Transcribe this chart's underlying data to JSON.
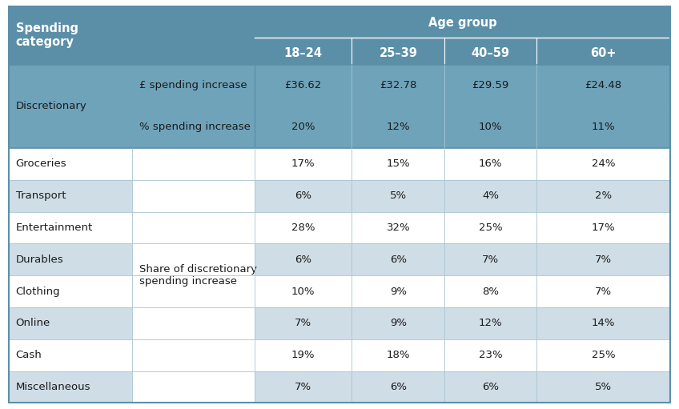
{
  "col_header_bg": "#5b8fa8",
  "disc_bg": "#6fa3ba",
  "shaded_row_bg": "#cfdde6",
  "white_row_bg": "#ffffff",
  "border_color": "#5b8fa8",
  "inner_line_color": "#a8c4d0",
  "age_groups": [
    "18–24",
    "25–39",
    "40–59",
    "60+"
  ],
  "disc_row1_vals": [
    "£36.62",
    "£32.78",
    "£29.59",
    "£24.48"
  ],
  "disc_row2_vals": [
    "20%",
    "12%",
    "10%",
    "11%"
  ],
  "data_rows": [
    {
      "col1": "Groceries",
      "values": [
        "17%",
        "15%",
        "16%",
        "24%"
      ],
      "bg": "white"
    },
    {
      "col1": "Transport",
      "values": [
        "6%",
        "5%",
        "4%",
        "2%"
      ],
      "bg": "shaded"
    },
    {
      "col1": "Entertainment",
      "values": [
        "28%",
        "32%",
        "25%",
        "17%"
      ],
      "bg": "white"
    },
    {
      "col1": "Durables",
      "values": [
        "6%",
        "6%",
        "7%",
        "7%"
      ],
      "bg": "shaded"
    },
    {
      "col1": "Clothing",
      "values": [
        "10%",
        "9%",
        "8%",
        "7%"
      ],
      "bg": "white"
    },
    {
      "col1": "Online",
      "values": [
        "7%",
        "9%",
        "12%",
        "14%"
      ],
      "bg": "shaded"
    },
    {
      "col1": "Cash",
      "values": [
        "19%",
        "18%",
        "23%",
        "25%"
      ],
      "bg": "white"
    },
    {
      "col1": "Miscellaneous",
      "values": [
        "7%",
        "6%",
        "6%",
        "5%"
      ],
      "bg": "shaded"
    }
  ],
  "shared_label": "Share of discretionary\nspending increase",
  "figsize": [
    8.48,
    5.11
  ],
  "dpi": 100
}
